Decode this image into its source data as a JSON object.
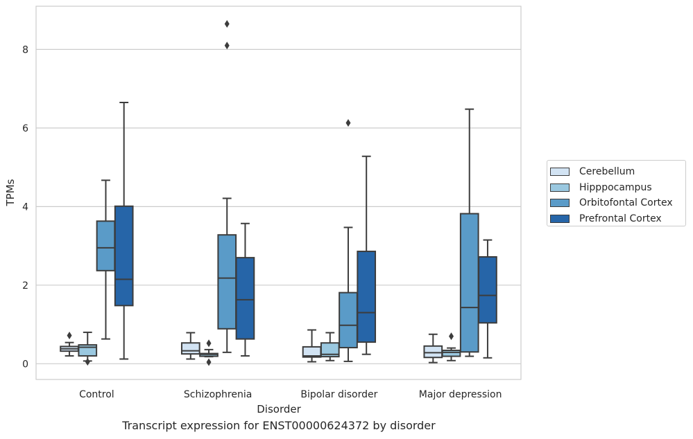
{
  "chart_data": {
    "type": "box",
    "title": "",
    "caption": "Transcript expression for ENST00000624372 by disorder",
    "xlabel": "Disorder",
    "ylabel": "TPMs",
    "ylim": [
      -0.4,
      9.1
    ],
    "yticks": [
      0,
      2,
      4,
      6,
      8
    ],
    "grid": true,
    "legend_placement": "right",
    "categories": [
      "Control",
      "Schizophrenia",
      "Bipolar disorder",
      "Major depression"
    ],
    "series": [
      {
        "name": "Cerebellum",
        "color": "#d2e3f3",
        "boxes": [
          {
            "whislo": 0.2,
            "q1": 0.32,
            "med": 0.38,
            "q3": 0.44,
            "whishi": 0.54,
            "fliers": [
              0.72
            ]
          },
          {
            "whislo": 0.12,
            "q1": 0.25,
            "med": 0.33,
            "q3": 0.53,
            "whishi": 0.79,
            "fliers": []
          },
          {
            "whislo": 0.05,
            "q1": 0.17,
            "med": 0.2,
            "q3": 0.43,
            "whishi": 0.86,
            "fliers": []
          },
          {
            "whislo": 0.03,
            "q1": 0.16,
            "med": 0.28,
            "q3": 0.45,
            "whishi": 0.75,
            "fliers": []
          }
        ]
      },
      {
        "name": "Hipppocampus",
        "color": "#9ac8e0",
        "boxes": [
          {
            "whislo": 0.07,
            "q1": 0.2,
            "med": 0.42,
            "q3": 0.48,
            "whishi": 0.8,
            "fliers": [
              0.05
            ]
          },
          {
            "whislo": 0.18,
            "q1": 0.19,
            "med": 0.24,
            "q3": 0.26,
            "whishi": 0.36,
            "fliers": [
              0.52,
              0.04
            ]
          },
          {
            "whislo": 0.08,
            "q1": 0.18,
            "med": 0.24,
            "q3": 0.53,
            "whishi": 0.79,
            "fliers": []
          },
          {
            "whislo": 0.08,
            "q1": 0.19,
            "med": 0.29,
            "q3": 0.34,
            "whishi": 0.4,
            "fliers": [
              0.7
            ]
          }
        ]
      },
      {
        "name": "Orbitofontal Cortex",
        "color": "#5a9bc8",
        "boxes": [
          {
            "whislo": 0.63,
            "q1": 2.37,
            "med": 2.95,
            "q3": 3.63,
            "whishi": 4.67,
            "fliers": []
          },
          {
            "whislo": 0.29,
            "q1": 0.89,
            "med": 2.18,
            "q3": 3.28,
            "whishi": 4.21,
            "fliers": [
              8.1,
              8.65
            ]
          },
          {
            "whislo": 0.06,
            "q1": 0.41,
            "med": 0.98,
            "q3": 1.81,
            "whishi": 3.47,
            "fliers": [
              6.13
            ]
          },
          {
            "whislo": 0.19,
            "q1": 0.3,
            "med": 1.43,
            "q3": 3.82,
            "whishi": 6.48,
            "fliers": []
          }
        ]
      },
      {
        "name": "Prefrontal Cortex",
        "color": "#2665a8",
        "boxes": [
          {
            "whislo": 0.12,
            "q1": 1.48,
            "med": 2.15,
            "q3": 4.01,
            "whishi": 6.65,
            "fliers": []
          },
          {
            "whislo": 0.2,
            "q1": 0.63,
            "med": 1.63,
            "q3": 2.7,
            "whishi": 3.57,
            "fliers": []
          },
          {
            "whislo": 0.24,
            "q1": 0.55,
            "med": 1.3,
            "q3": 2.86,
            "whishi": 5.28,
            "fliers": []
          },
          {
            "whislo": 0.15,
            "q1": 1.04,
            "med": 1.74,
            "q3": 2.72,
            "whishi": 3.15,
            "fliers": []
          }
        ]
      }
    ]
  }
}
